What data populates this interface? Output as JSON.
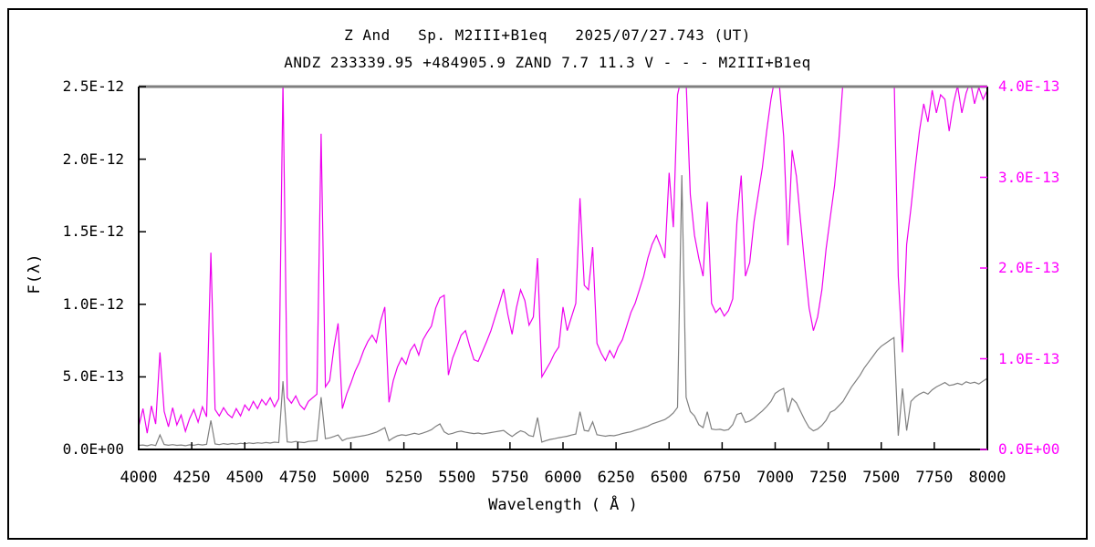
{
  "header": {
    "title": "Z And   Sp. M2III+B1eq   2025/07/27.743 (UT)",
    "subtitle": "ANDZ 233339.95 +484905.9 ZAND 7.7 11.3 V - - - M2III+B1eq"
  },
  "chart_data": {
    "type": "line",
    "title": "Z And   Sp. M2III+B1eq   2025/07/27.743 (UT)",
    "subtitle": "ANDZ 233339.95 +484905.9 ZAND 7.7 11.3 V - - - M2III+B1eq",
    "xlabel": "Wavelength ( Å )",
    "ylabel": "F(λ)",
    "grid": false,
    "legend": "none",
    "x_axis": {
      "range": [
        4000,
        8000
      ],
      "tick_step": 250,
      "tick_labels": [
        "4000",
        "4250",
        "4500",
        "4750",
        "5000",
        "5250",
        "5500",
        "5750",
        "6000",
        "6250",
        "6500",
        "6750",
        "7000",
        "7250",
        "7500",
        "7750",
        "8000"
      ]
    },
    "left_axis": {
      "label": "F(λ)",
      "range_exp": "0 to 2.5E-12",
      "tick_labels": [
        "0.0E+00",
        "5.0E-13",
        "1.0E-12",
        "1.5E-12",
        "2.0E-12",
        "2.5E-12"
      ],
      "max_units_1e15": 2500,
      "color": "#000000"
    },
    "right_axis": {
      "range_exp": "0 to 4.0E-13",
      "tick_labels": [
        "0.0E+00",
        "1.0E-13",
        "2.0E-13",
        "3.0E-13",
        "4.0E-13"
      ],
      "max_units_1e15": 400,
      "color": "#ff00ff"
    },
    "series": [
      {
        "name": "gray-series-left-axis",
        "axis": "left",
        "color": "#7f7f7f",
        "unit": "1e-15 erg/cm2/s/A",
        "x_start": 4000,
        "x_step": 20,
        "features": "emission spikes at 4100, 4340, 4686, 4861, 5876, 6080, 6563 (Halpha to 1.89e-12), 6678; Na D and Mg b dips; telluric A-band notch at 7600; TiO continuum rise 7300-7560 to 0.77e-12",
        "values": [
          28,
          31,
          25,
          33,
          27,
          100,
          34,
          29,
          33,
          28,
          31,
          26,
          32,
          29,
          35,
          31,
          36,
          200,
          38,
          33,
          40,
          35,
          41,
          37,
          43,
          39,
          45,
          41,
          46,
          43,
          48,
          44,
          50,
          47,
          470,
          52,
          49,
          55,
          50,
          47,
          55,
          58,
          60,
          360,
          74,
          80,
          89,
          100,
          60,
          74,
          80,
          85,
          90,
          95,
          101,
          109,
          119,
          134,
          150,
          60,
          80,
          94,
          101,
          97,
          104,
          111,
          104,
          114,
          124,
          136,
          159,
          176,
          121,
          104,
          111,
          121,
          126,
          119,
          114,
          109,
          113,
          107,
          111,
          116,
          121,
          126,
          131,
          109,
          89,
          111,
          129,
          119,
          96,
          89,
          220,
          50,
          61,
          69,
          74,
          81,
          86,
          91,
          99,
          106,
          260,
          131,
          126,
          190,
          101,
          96,
          91,
          97,
          94,
          101,
          109,
          116,
          121,
          131,
          141,
          151,
          161,
          176,
          186,
          196,
          206,
          226,
          251,
          290,
          1890,
          360,
          261,
          231,
          171,
          151,
          260,
          141,
          136,
          139,
          131,
          137,
          171,
          241,
          251,
          186,
          196,
          216,
          241,
          266,
          296,
          331,
          386,
          406,
          421,
          256,
          351,
          321,
          261,
          201,
          151,
          128,
          141,
          166,
          201,
          256,
          271,
          301,
          331,
          381,
          431,
          471,
          511,
          561,
          601,
          641,
          681,
          711,
          731,
          751,
          771,
          95,
          420,
          130,
          331,
          361,
          381,
          396,
          381,
          411,
          431,
          446,
          461,
          441,
          446,
          456,
          446,
          466,
          456,
          463,
          451,
          471,
          490
        ]
      },
      {
        "name": "magenta-series-right-axis",
        "axis": "right",
        "color": "#ee00ee",
        "unit": "1e-15 erg/cm2/s/A",
        "x_start": 4000,
        "x_step": 20,
        "features": "emission spikes at 4100 (1.07e-13), 4340 (2.17e-13), 4686 (clipped >4e-13), 4861 (3.48e-13), 5876 (2.11e-13), 6080 (2.77e-13), 6678 (2.73e-13); Halpha region and 6990-7050, 7320-7560, 7700-8000 clipped above 4.0e-13; telluric notch to 1.07e-13 near 7600",
        "values": [
          25,
          45,
          18,
          48,
          28,
          107,
          42,
          25,
          46,
          27,
          38,
          20,
          34,
          44,
          30,
          47,
          36,
          217,
          44,
          37,
          46,
          39,
          35,
          45,
          37,
          49,
          43,
          53,
          45,
          55,
          49,
          57,
          47,
          56,
          405,
          57,
          51,
          59,
          49,
          44,
          53,
          57,
          61,
          348,
          69,
          76,
          112,
          139,
          45,
          61,
          73,
          86,
          96,
          109,
          119,
          126,
          118,
          141,
          157,
          52,
          76,
          91,
          101,
          94,
          109,
          116,
          104,
          121,
          129,
          136,
          156,
          167,
          170,
          82,
          101,
          113,
          126,
          131,
          114,
          99,
          97,
          108,
          119,
          131,
          146,
          161,
          177,
          149,
          127,
          156,
          176,
          164,
          137,
          146,
          211,
          80,
          88,
          96,
          106,
          113,
          157,
          131,
          146,
          161,
          277,
          181,
          176,
          223,
          117,
          106,
          98,
          109,
          101,
          113,
          121,
          136,
          151,
          161,
          176,
          191,
          211,
          226,
          236,
          224,
          211,
          305,
          245,
          391,
          412,
          406,
          281,
          236,
          211,
          191,
          273,
          161,
          151,
          156,
          147,
          153,
          166,
          251,
          302,
          191,
          206,
          251,
          281,
          311,
          351,
          386,
          411,
          402,
          345,
          225,
          330,
          301,
          251,
          201,
          156,
          131,
          146,
          176,
          221,
          256,
          291,
          341,
          406,
          421,
          431,
          426,
          432,
          428,
          433,
          427,
          431,
          429,
          433,
          424,
          418,
          191,
          107,
          226,
          266,
          311,
          351,
          381,
          361,
          396,
          371,
          391,
          386,
          351,
          381,
          401,
          371,
          393,
          406,
          381,
          399,
          386,
          396
        ]
      }
    ],
    "frame": {
      "top_color": "#7f7f7f",
      "side_color": "#000000"
    }
  }
}
